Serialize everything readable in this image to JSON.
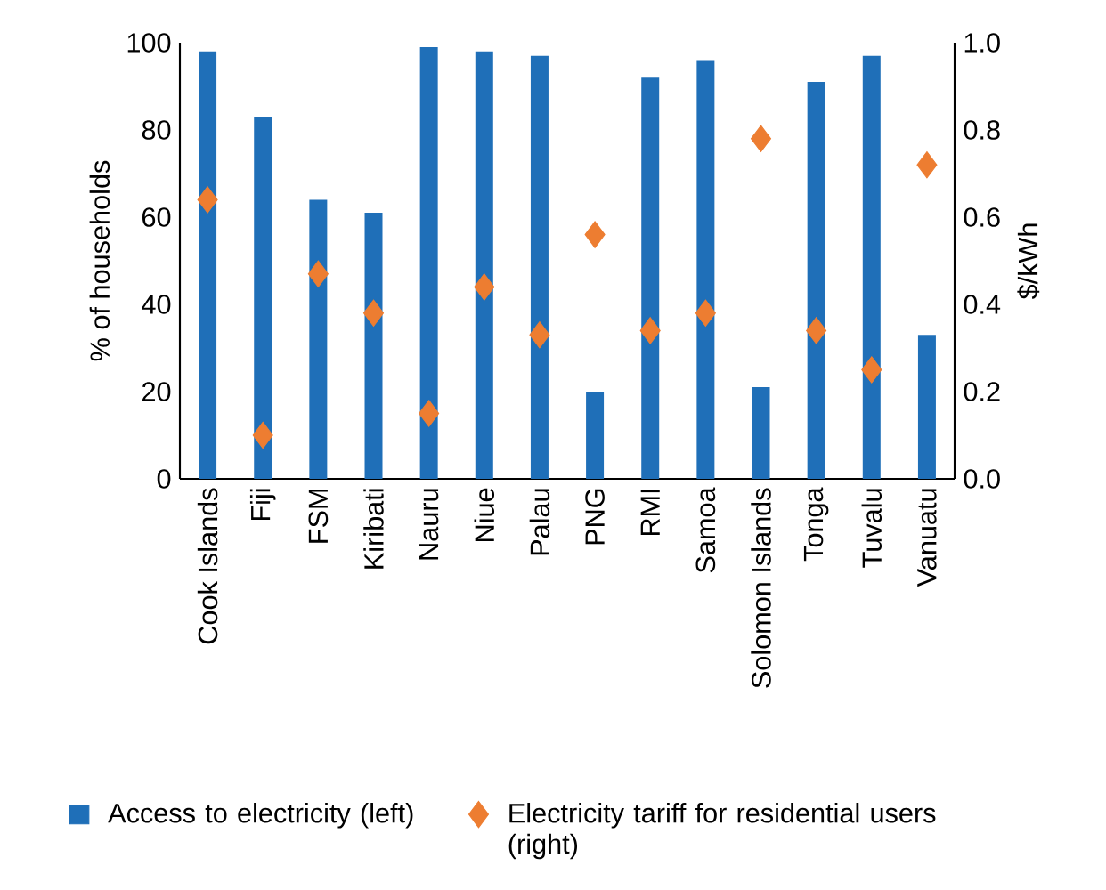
{
  "chart_data": {
    "type": "bar",
    "categories": [
      "Cook Islands",
      "Fiji",
      "FSM",
      "Kiribati",
      "Nauru",
      "Niue",
      "Palau",
      "PNG",
      "RMI",
      "Samoa",
      "Solomon Islands",
      "Tonga",
      "Tuvalu",
      "Vanuatu"
    ],
    "series": [
      {
        "name": "Access to electricity (left)",
        "color": "#1f6fb8",
        "values": [
          98,
          83,
          64,
          61,
          99,
          98,
          97,
          20,
          92,
          96,
          21,
          91,
          97,
          33
        ]
      },
      {
        "name": "Electricity tariff for residential users (right)",
        "type": "scatter",
        "axis": "y2",
        "marker": "diamond",
        "color": "#ed7d31",
        "values": [
          0.64,
          0.1,
          0.47,
          0.38,
          0.15,
          0.44,
          0.33,
          0.56,
          0.34,
          0.38,
          0.78,
          0.34,
          0.25,
          0.72
        ]
      }
    ],
    "ylabel": "% of households",
    "y2label": "$/kWh",
    "ylim": [
      0,
      100
    ],
    "yticks": [
      0,
      20,
      40,
      60,
      80,
      100
    ],
    "y2lim": [
      0,
      1
    ],
    "y2ticks": [
      {
        "value": 0,
        "label": "0.0"
      },
      {
        "value": 0.2,
        "label": "0.2"
      },
      {
        "value": 0.4,
        "label": "0.4"
      },
      {
        "value": 0.6,
        "label": "0.6"
      },
      {
        "value": 0.8,
        "label": "0.8"
      },
      {
        "value": 1,
        "label": "1.0"
      }
    ],
    "legend": "bottom",
    "grid": false
  }
}
